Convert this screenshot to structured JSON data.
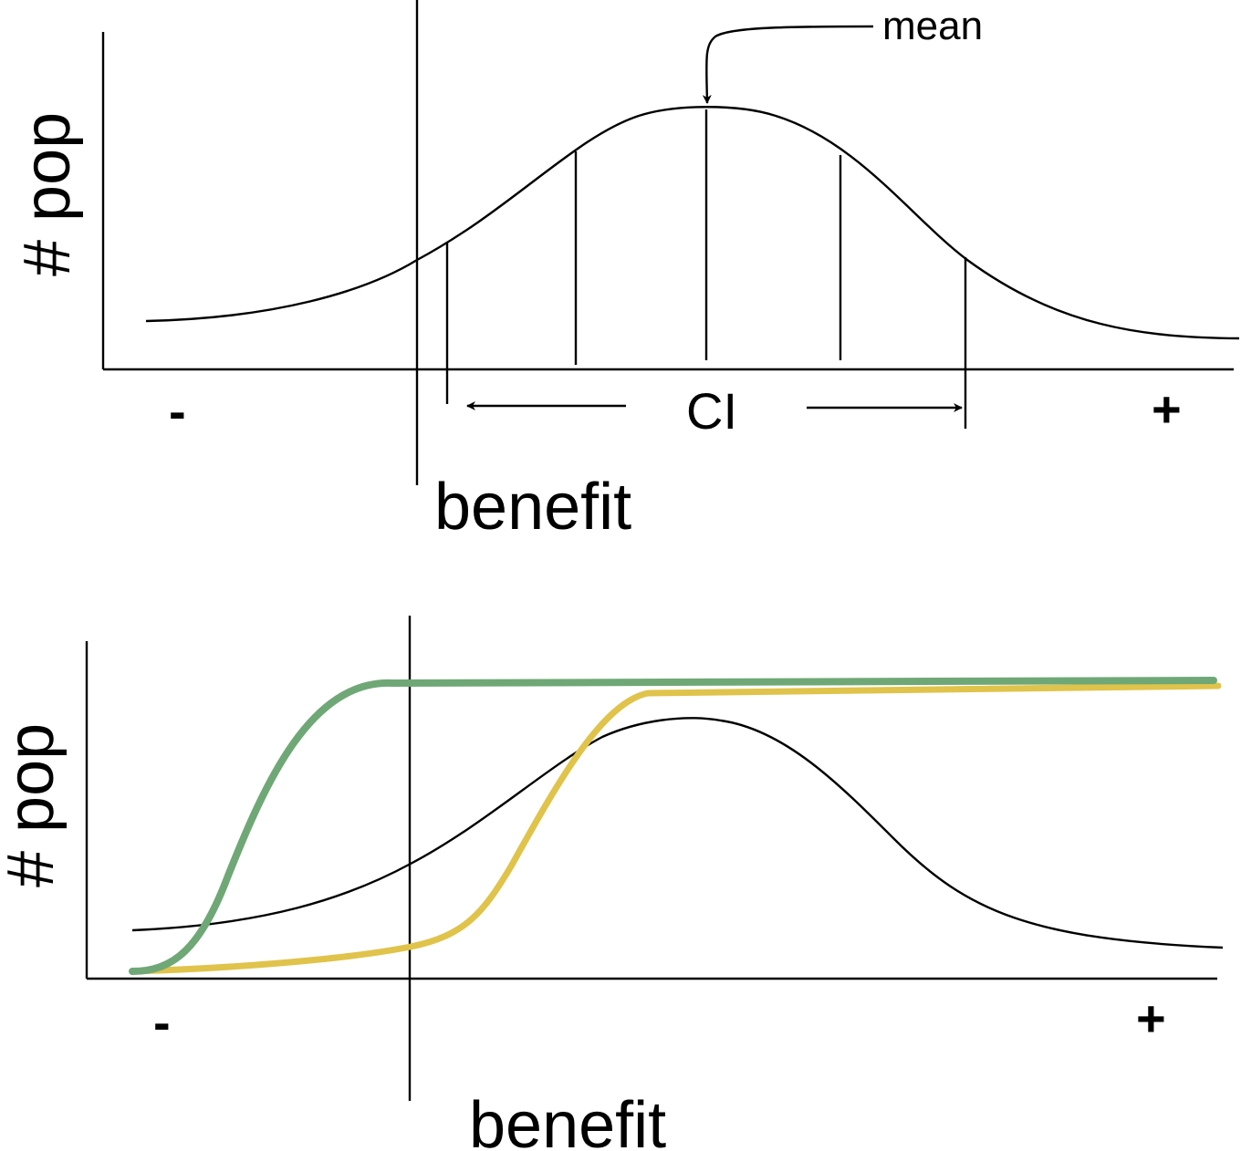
{
  "top_panel": {
    "y_axis_label": "# pop",
    "x_axis_label": "benefit",
    "negative_sign": "-",
    "positive_sign": "+",
    "mean_label": "mean",
    "ci_label": "CI"
  },
  "bottom_panel": {
    "y_axis_label": "# pop",
    "x_axis_label": "benefit",
    "negative_sign": "-",
    "positive_sign": "+",
    "curve_colors": {
      "distribution": "#000000",
      "green_cumulative": "#6fa876",
      "yellow_cumulative": "#e0c34a"
    }
  }
}
